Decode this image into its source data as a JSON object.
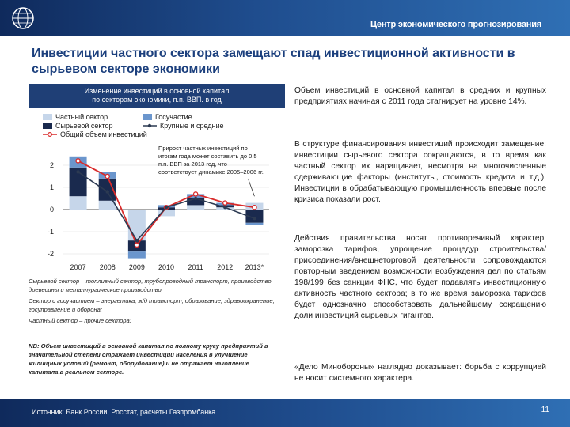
{
  "header": {
    "org": "Центр экономического прогнозирования"
  },
  "title": "Инвестиции частного сектора замещают спад инвестиционной активности в сырьевом секторе экономики",
  "chart_panel": {
    "title_line1": "Изменение инвестиций в основной капитал",
    "title_line2": "по секторам экономики, п.п. ВВП. в год"
  },
  "chart_data": {
    "type": "bar",
    "title": "Изменение инвестиций в основной капитал по секторам экономики, п.п. ВВП. в год",
    "categories": [
      "2007",
      "2008",
      "2009",
      "2010",
      "2011",
      "2012",
      "2013*"
    ],
    "ylim": [
      -2,
      3
    ],
    "yticks": [
      -2,
      -1,
      0,
      1,
      2
    ],
    "ytick_labels": [
      "-2",
      "-1",
      "0",
      "1",
      "2"
    ],
    "series": [
      {
        "name": "Частный сектор",
        "kind": "bar",
        "color": "#c6d6ea",
        "values": [
          0.6,
          0.4,
          -1.4,
          -0.3,
          0.2,
          0.1,
          0.3
        ]
      },
      {
        "name": "Сырьевой сектор",
        "kind": "bar",
        "color": "#1a2a4e",
        "values": [
          1.3,
          1.0,
          -0.5,
          0.1,
          0.3,
          0.1,
          -0.6
        ]
      },
      {
        "name": "Госучастие",
        "kind": "bar",
        "color": "#6b96cd",
        "values": [
          0.5,
          0.3,
          -0.3,
          0.1,
          0.2,
          0.1,
          -0.1
        ]
      },
      {
        "name": "Общий объем инвестиций",
        "kind": "line",
        "color": "#d92a2a",
        "values": [
          2.2,
          1.5,
          -1.6,
          0.1,
          0.7,
          0.3,
          0.1
        ]
      },
      {
        "name": "Крупные и средние",
        "kind": "line",
        "color": "#2c3a52",
        "values": [
          1.7,
          0.8,
          -1.4,
          0.1,
          0.5,
          0.1,
          -0.4
        ]
      }
    ]
  },
  "annotation": {
    "line1": "Прирост частных инвестиций по",
    "line2": "итогам года может составить до 0,5",
    "line3": "п.п. ВВП за 2013 год, что",
    "line4": "соответствует динамике 2005–2006 гг."
  },
  "definitions": {
    "raw": "Сырьевой сектор – топливный сектор, трубопроводный транспорт, производство древесины и металлургическое производство;",
    "state": "Сектор с госучастием – энергетика, ж/д транспорт, образование, здравоохранение, госуправление и оборона;",
    "private": "Частный сектор – прочие сектора;"
  },
  "nb": "NB: Объем инвестиций в основной капитал по полному кругу предприятий в значительной степени отражает инвестиции населения в улучшение жилищных условий (ремонт, оборудование) и не отражает накопление капитала в реальном секторе.",
  "right": {
    "p1": "Объем инвестиций в основной капитал в средних и крупных предприятиях начиная с 2011 года стагнирует на уровне 14%.",
    "p2": "В структуре финансирования инвестиций происходит замещение: инвестиции сырьевого сектора сокращаются, в то время как частный сектор их наращивает, несмотря на многочисленные сдерживающие факторы (институты, стоимость кредита и т.д.). Инвестиции в обрабатывающую промышленность впервые после кризиса показали рост.",
    "p3": "Действия правительства носят противоречивый характер: заморозка тарифов, упрощение процедур строительства/присоединения/внешнеторговой деятельности сопровождаются повторным введением возможности возбуждения дел по статьям 198/199 без санкции ФНС, что будет подавлять инвестиционную активность частного сектора; в то же время заморозка тарифов будет однозначно способствовать дальнейшему сокращению доли инвестиций сырьевых гигантов.",
    "p4": "«Дело Минобороны» наглядно доказывает: борьба с коррупцией не носит системного характера."
  },
  "footer": {
    "source": "Источник: Банк России, Росстат, расчеты Газпромбанка",
    "page": "11"
  }
}
